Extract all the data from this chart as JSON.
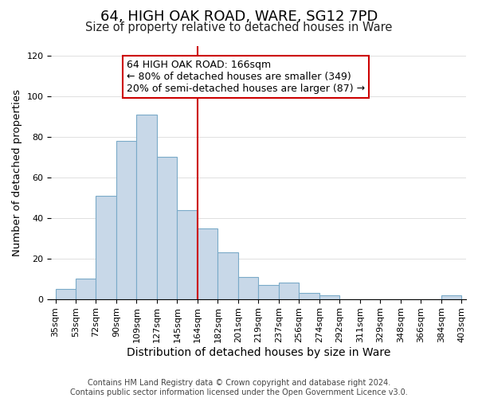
{
  "title": "64, HIGH OAK ROAD, WARE, SG12 7PD",
  "subtitle": "Size of property relative to detached houses in Ware",
  "xlabel": "Distribution of detached houses by size in Ware",
  "ylabel": "Number of detached properties",
  "bar_color": "#c8d8e8",
  "bar_edgecolor": "#7aaac8",
  "bins": [
    "35sqm",
    "53sqm",
    "72sqm",
    "90sqm",
    "109sqm",
    "127sqm",
    "145sqm",
    "164sqm",
    "182sqm",
    "201sqm",
    "219sqm",
    "237sqm",
    "256sqm",
    "274sqm",
    "292sqm",
    "311sqm",
    "329sqm",
    "348sqm",
    "366sqm",
    "384sqm",
    "403sqm"
  ],
  "counts": [
    5,
    10,
    51,
    78,
    91,
    70,
    44,
    35,
    23,
    11,
    7,
    8,
    3,
    2,
    0,
    0,
    0,
    0,
    0,
    2
  ],
  "vline_x": 6.5,
  "vline_color": "#cc0000",
  "annotation_box_edgecolor": "#cc0000",
  "annotation_line0": "64 HIGH OAK ROAD: 166sqm",
  "annotation_line1": "← 80% of detached houses are smaller (349)",
  "annotation_line2": "20% of semi-detached houses are larger (87) →",
  "ylim": [
    0,
    125
  ],
  "footer1": "Contains HM Land Registry data © Crown copyright and database right 2024.",
  "footer2": "Contains public sector information licensed under the Open Government Licence v3.0.",
  "title_fontsize": 13,
  "subtitle_fontsize": 10.5,
  "xlabel_fontsize": 10,
  "ylabel_fontsize": 9.5,
  "tick_fontsize": 8,
  "annotation_fontsize": 9,
  "footer_fontsize": 7
}
